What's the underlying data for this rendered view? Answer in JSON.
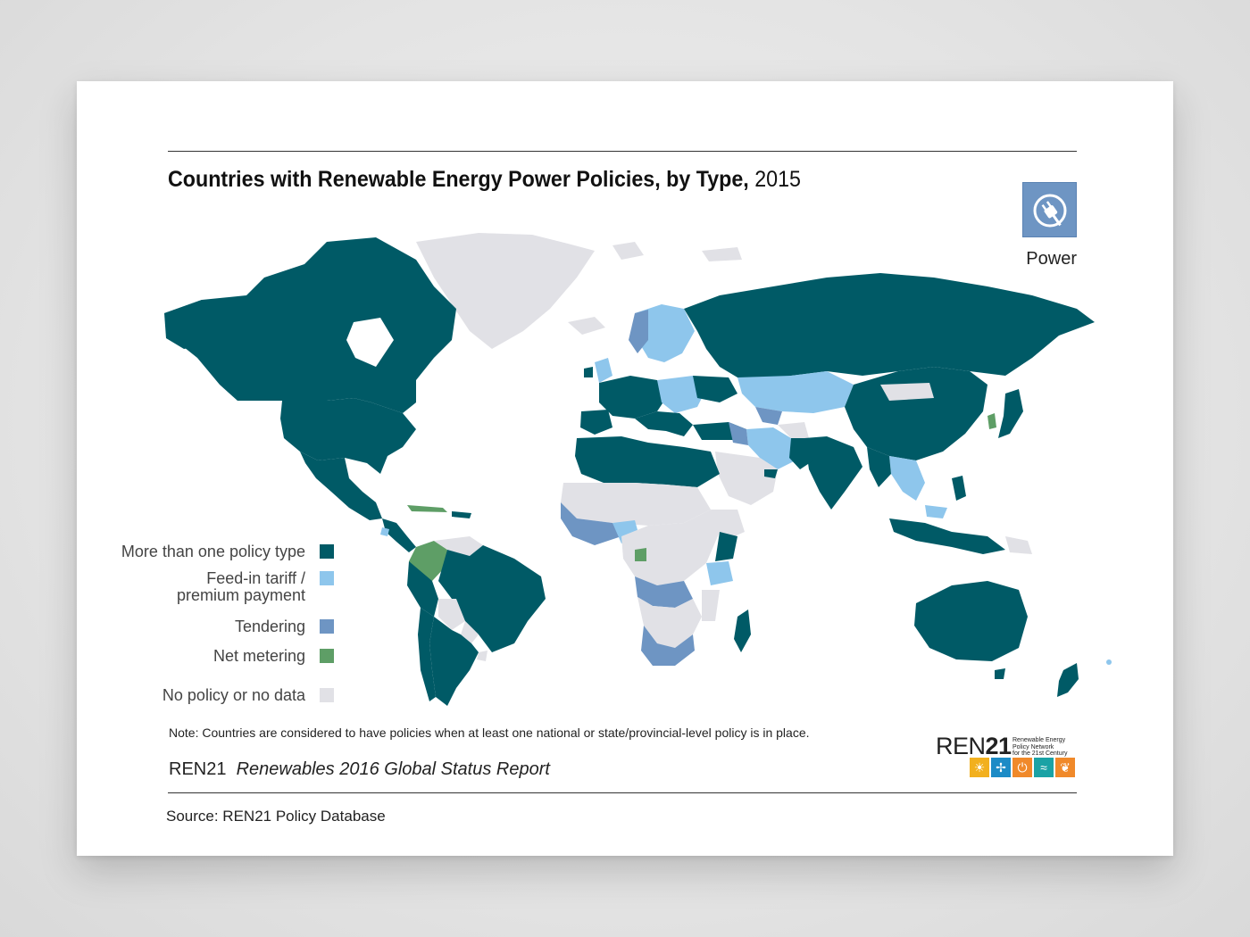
{
  "title": {
    "bold": "Countries with Renewable Energy Power Policies, by Type,",
    "year": "2015"
  },
  "power_badge": {
    "label": "Power",
    "icon": "power-plug-icon",
    "color": "#6e95c3"
  },
  "legend": [
    {
      "label": "More than one policy type",
      "color": "#005a66"
    },
    {
      "label_line1": "Feed-in tariff /",
      "label_line2": "premium payment",
      "color": "#8ec6ec"
    },
    {
      "label": "Tendering",
      "color": "#6e95c3"
    },
    {
      "label": "Net metering",
      "color": "#5e9e66"
    },
    {
      "label": "No policy or no data",
      "color": "#e1e1e6"
    }
  ],
  "note": "Note: Countries are considered to have policies when at least one national or state/provincial-level policy is in place.",
  "report": {
    "org": "REN21",
    "title": "Renewables 2016 Global Status Report"
  },
  "source": "Source: REN21 Policy Database",
  "ren21_logo": {
    "word": "REN",
    "number": "21",
    "tagline": [
      "Renewable Energy",
      "Policy Network",
      "for the 21st Century"
    ],
    "tiles": [
      {
        "icon": "sun-icon",
        "color": "#f2b01e",
        "glyph": "☀"
      },
      {
        "icon": "wind-turbine-icon",
        "color": "#1c8bc6",
        "glyph": "✢"
      },
      {
        "icon": "power-icon",
        "color": "#f0892a",
        "glyph": "⏻"
      },
      {
        "icon": "water-icon",
        "color": "#1aa2a5",
        "glyph": "≈"
      },
      {
        "icon": "leaf-icon",
        "color": "#f0892a",
        "glyph": "❦"
      }
    ]
  }
}
